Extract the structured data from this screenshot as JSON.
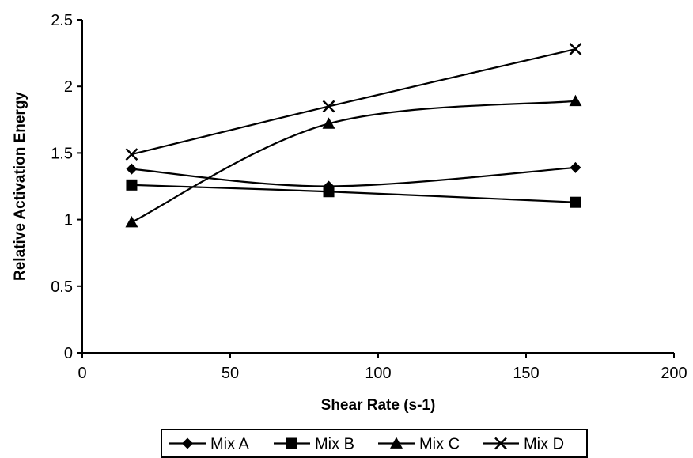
{
  "chart_data": {
    "type": "line",
    "title": "",
    "xlabel": "Shear Rate (s-1)",
    "ylabel": "Relative Activation Energy",
    "xlim": [
      0,
      200
    ],
    "ylim": [
      0,
      2.5
    ],
    "xticks": [
      0,
      50,
      100,
      150,
      200
    ],
    "yticks": [
      0,
      0.5,
      1,
      1.5,
      2,
      2.5
    ],
    "xtick_labels": [
      "0",
      "50",
      "100",
      "150",
      "200"
    ],
    "ytick_labels": [
      "0",
      "0.5",
      "1",
      "1.5",
      "2",
      "2.5"
    ],
    "grid": false,
    "smoothed": true,
    "legend_position": "bottom",
    "series": [
      {
        "name": "Mix A",
        "marker": "diamond",
        "color": "#000000",
        "x": [
          16.7,
          83.3,
          166.7
        ],
        "y": [
          1.38,
          1.25,
          1.39
        ]
      },
      {
        "name": "Mix B",
        "marker": "square",
        "color": "#000000",
        "x": [
          16.7,
          83.3,
          166.7
        ],
        "y": [
          1.26,
          1.21,
          1.13
        ]
      },
      {
        "name": "Mix C",
        "marker": "triangle",
        "color": "#000000",
        "x": [
          16.7,
          83.3,
          166.7
        ],
        "y": [
          0.98,
          1.72,
          1.89
        ]
      },
      {
        "name": "Mix D",
        "marker": "x",
        "color": "#000000",
        "x": [
          16.7,
          83.3,
          166.7
        ],
        "y": [
          1.49,
          1.85,
          2.28
        ]
      }
    ]
  }
}
